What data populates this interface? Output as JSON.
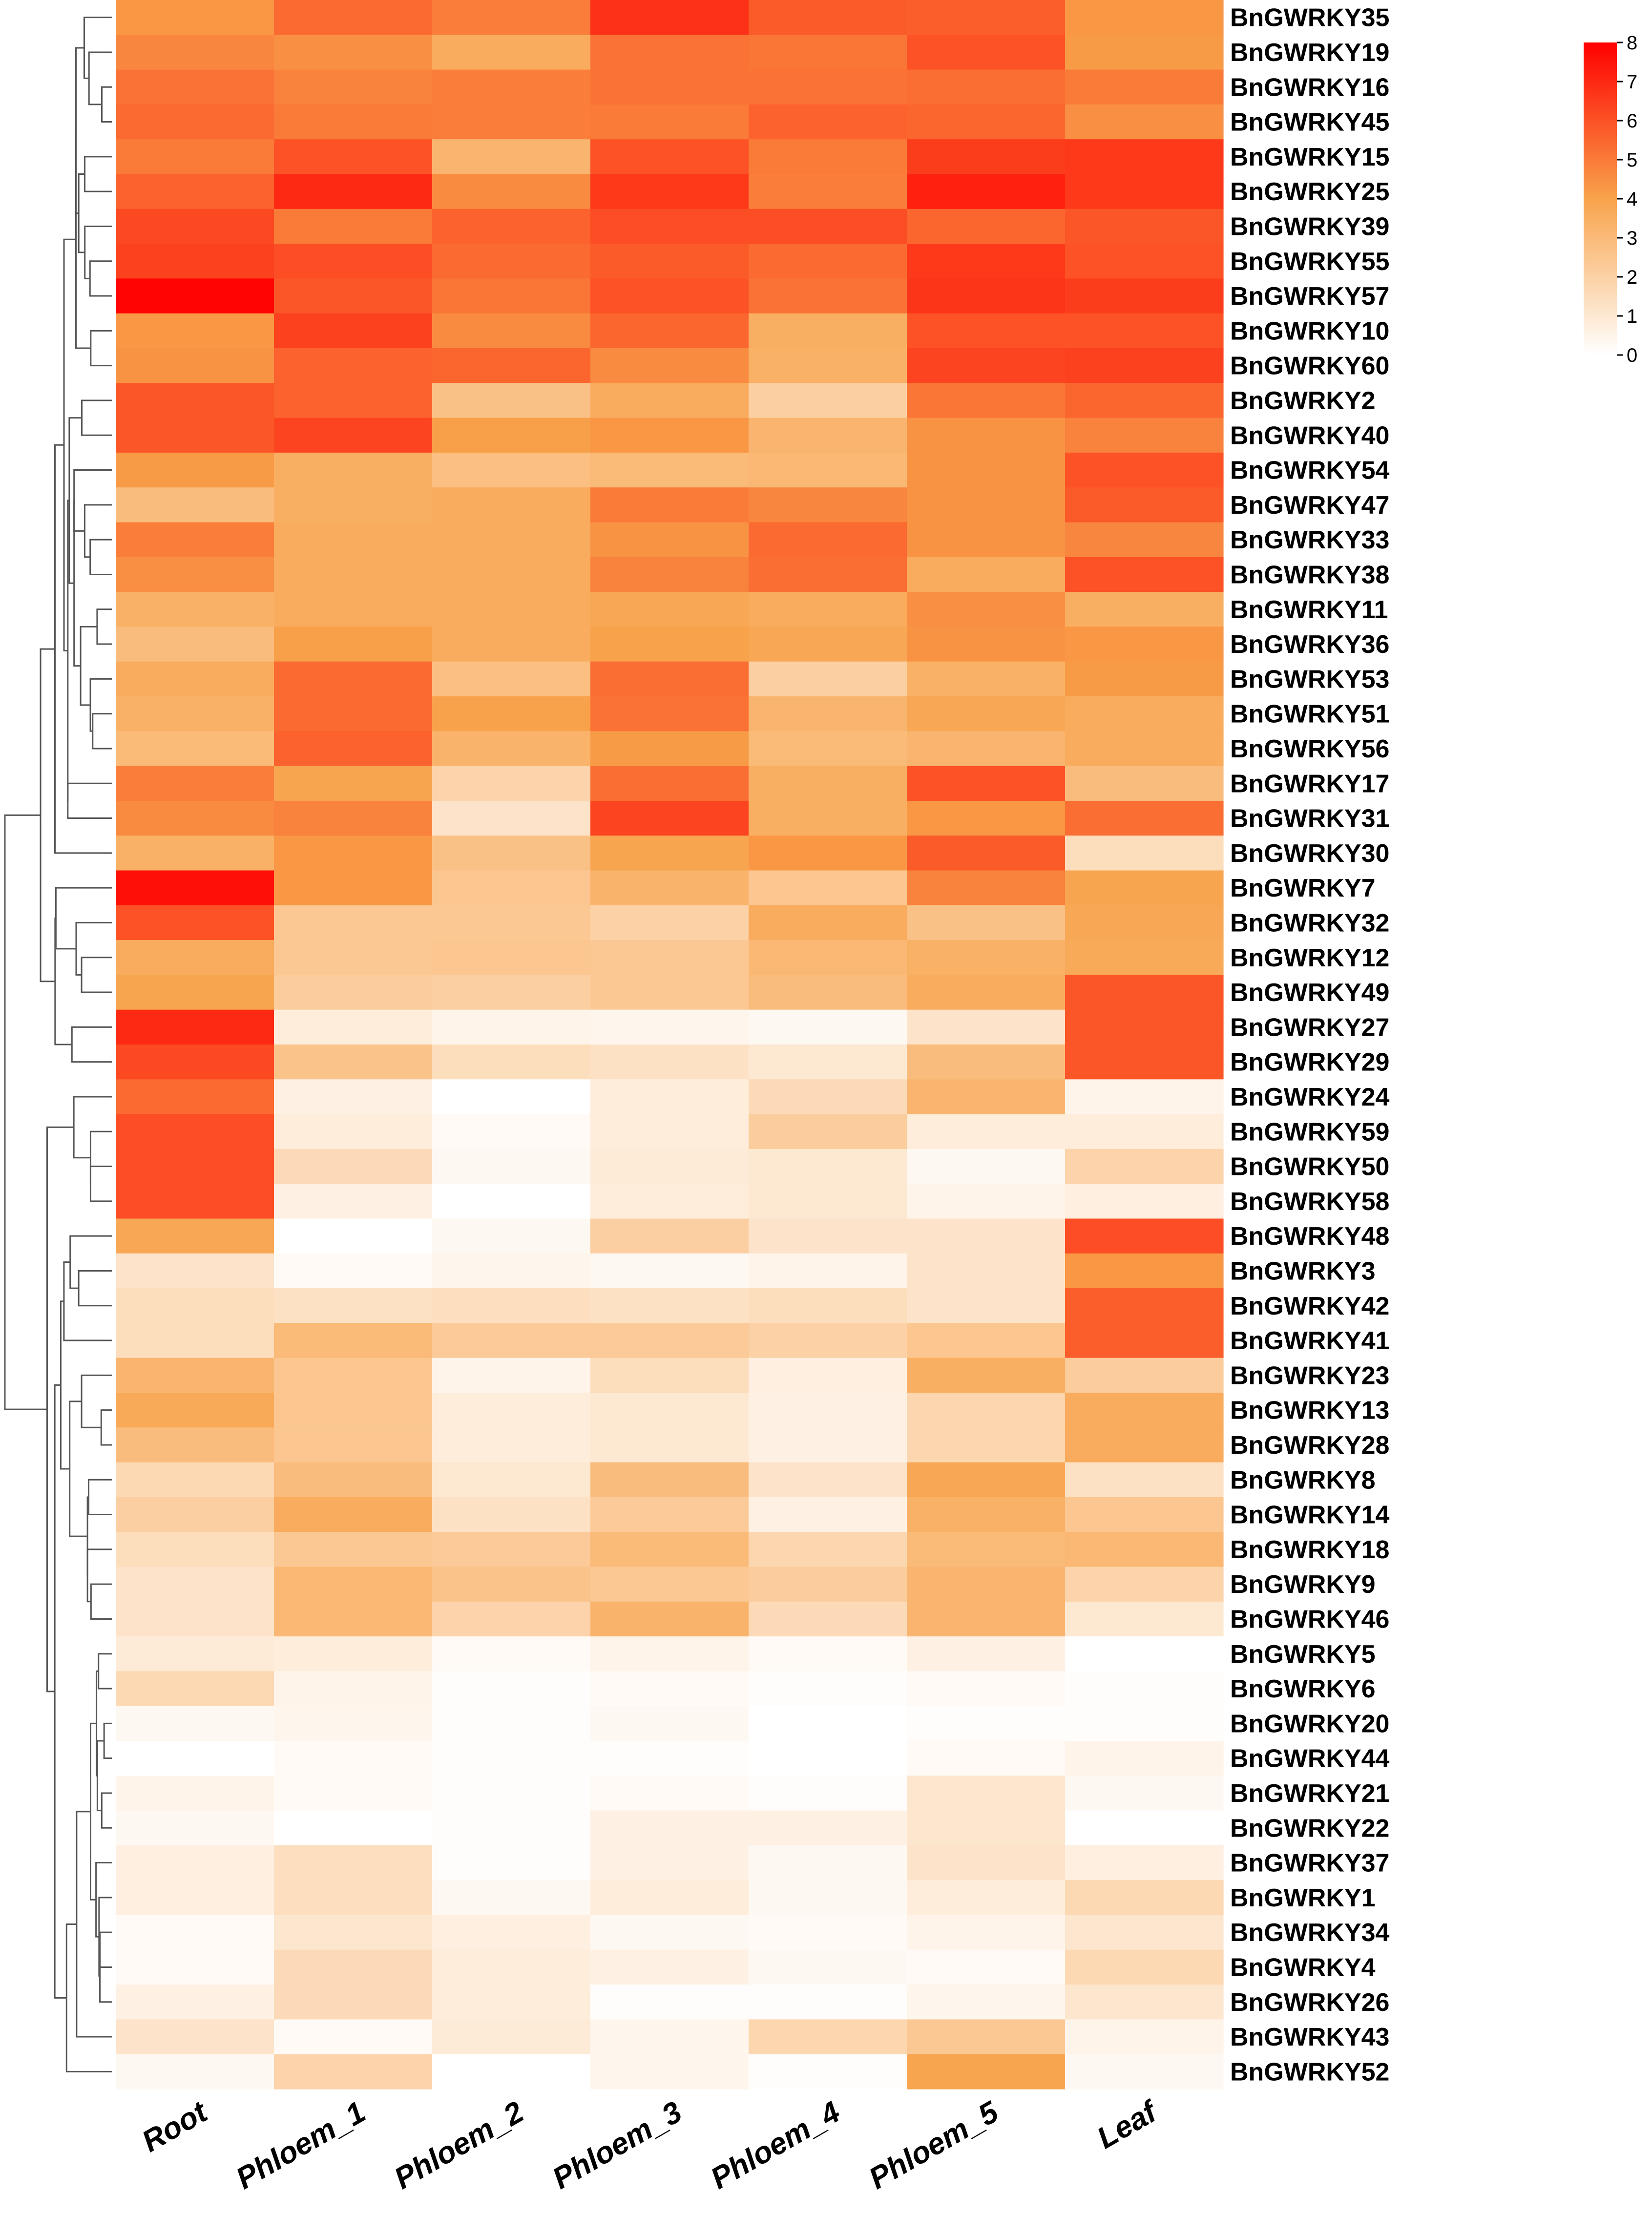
{
  "chart_data": {
    "type": "heatmap",
    "title": "",
    "xlabel": "",
    "ylabel": "",
    "columns": [
      "Root",
      "Phloem_1",
      "Phloem_2",
      "Phloem_3",
      "Phloem_4",
      "Phloem_5",
      "Leaf"
    ],
    "rows": [
      "BnGWRKY35",
      "BnGWRKY19",
      "BnGWRKY16",
      "BnGWRKY45",
      "BnGWRKY15",
      "BnGWRKY25",
      "BnGWRKY39",
      "BnGWRKY55",
      "BnGWRKY57",
      "BnGWRKY10",
      "BnGWRKY60",
      "BnGWRKY2",
      "BnGWRKY40",
      "BnGWRKY54",
      "BnGWRKY47",
      "BnGWRKY33",
      "BnGWRKY38",
      "BnGWRKY11",
      "BnGWRKY36",
      "BnGWRKY53",
      "BnGWRKY51",
      "BnGWRKY56",
      "BnGWRKY17",
      "BnGWRKY31",
      "BnGWRKY30",
      "BnGWRKY7",
      "BnGWRKY32",
      "BnGWRKY12",
      "BnGWRKY49",
      "BnGWRKY27",
      "BnGWRKY29",
      "BnGWRKY24",
      "BnGWRKY59",
      "BnGWRKY50",
      "BnGWRKY58",
      "BnGWRKY48",
      "BnGWRKY3",
      "BnGWRKY42",
      "BnGWRKY41",
      "BnGWRKY23",
      "BnGWRKY13",
      "BnGWRKY28",
      "BnGWRKY8",
      "BnGWRKY14",
      "BnGWRKY18",
      "BnGWRKY9",
      "BnGWRKY46",
      "BnGWRKY5",
      "BnGWRKY6",
      "BnGWRKY20",
      "BnGWRKY44",
      "BnGWRKY21",
      "BnGWRKY22",
      "BnGWRKY37",
      "BnGWRKY1",
      "BnGWRKY34",
      "BnGWRKY4",
      "BnGWRKY26",
      "BnGWRKY43",
      "BnGWRKY52"
    ],
    "values": [
      [
        4.3,
        5.4,
        4.9,
        6.8,
        5.8,
        5.7,
        4.3
      ],
      [
        4.7,
        4.5,
        3.6,
        5.2,
        5.1,
        6.0,
        4.2
      ],
      [
        5.2,
        4.8,
        4.9,
        5.2,
        5.2,
        5.3,
        5.0
      ],
      [
        5.4,
        5.0,
        4.9,
        5.0,
        5.6,
        5.5,
        4.5
      ],
      [
        5.0,
        6.0,
        3.2,
        6.0,
        5.0,
        6.5,
        6.6
      ],
      [
        5.6,
        7.0,
        4.6,
        6.6,
        4.9,
        7.2,
        6.6
      ],
      [
        6.2,
        5.0,
        5.6,
        6.1,
        6.1,
        5.5,
        5.9
      ],
      [
        6.4,
        6.1,
        5.4,
        5.8,
        5.4,
        6.6,
        6.0
      ],
      [
        7.9,
        5.9,
        5.1,
        6.0,
        5.2,
        6.7,
        6.5
      ],
      [
        4.3,
        6.4,
        4.6,
        5.5,
        3.5,
        6.0,
        6.0
      ],
      [
        4.4,
        5.6,
        5.5,
        4.6,
        3.4,
        6.3,
        6.4
      ],
      [
        5.9,
        5.6,
        2.7,
        3.6,
        2.1,
        5.1,
        5.5
      ],
      [
        5.9,
        6.3,
        4.1,
        4.3,
        3.2,
        4.4,
        4.8
      ],
      [
        4.2,
        3.5,
        2.8,
        3.0,
        3.1,
        4.4,
        6.0
      ],
      [
        2.9,
        3.5,
        3.6,
        5.0,
        4.7,
        4.4,
        5.8
      ],
      [
        4.9,
        3.6,
        3.6,
        4.4,
        5.4,
        4.4,
        4.7
      ],
      [
        4.5,
        3.6,
        3.6,
        4.8,
        5.3,
        3.6,
        6.0
      ],
      [
        3.4,
        3.6,
        3.6,
        3.8,
        3.6,
        4.5,
        3.5
      ],
      [
        2.9,
        4.1,
        3.6,
        4.0,
        3.8,
        4.4,
        4.3
      ],
      [
        3.6,
        5.4,
        2.8,
        5.3,
        2.1,
        3.4,
        4.2
      ],
      [
        3.4,
        5.4,
        4.0,
        5.2,
        3.2,
        3.8,
        3.6
      ],
      [
        3.0,
        5.6,
        3.3,
        4.2,
        3.0,
        3.2,
        3.6
      ],
      [
        4.9,
        3.9,
        1.9,
        5.3,
        3.5,
        6.0,
        2.9
      ],
      [
        4.6,
        4.8,
        1.2,
        6.3,
        3.5,
        4.3,
        5.3
      ],
      [
        3.4,
        4.3,
        2.7,
        3.9,
        4.3,
        5.8,
        1.5
      ],
      [
        7.6,
        4.3,
        2.5,
        3.3,
        2.5,
        4.8,
        3.9
      ],
      [
        6.0,
        2.4,
        2.4,
        2.0,
        3.6,
        2.7,
        3.8
      ],
      [
        3.6,
        2.4,
        2.5,
        2.4,
        3.1,
        3.4,
        3.7
      ],
      [
        3.9,
        2.2,
        2.1,
        2.4,
        2.9,
        3.6,
        5.9
      ],
      [
        7.0,
        0.8,
        0.5,
        0.4,
        0.3,
        1.2,
        5.9
      ],
      [
        6.2,
        2.6,
        1.5,
        1.3,
        1.0,
        2.9,
        5.9
      ],
      [
        5.4,
        0.6,
        0.0,
        0.8,
        1.6,
        3.2,
        0.5
      ],
      [
        6.1,
        0.8,
        0.2,
        0.8,
        2.2,
        0.8,
        0.8
      ],
      [
        6.1,
        1.6,
        0.3,
        0.9,
        1.0,
        0.3,
        1.9
      ],
      [
        6.1,
        0.6,
        0.0,
        0.8,
        1.0,
        0.5,
        0.7
      ],
      [
        3.8,
        0.0,
        0.3,
        2.1,
        1.2,
        1.2,
        6.1
      ],
      [
        1.2,
        0.2,
        0.4,
        0.3,
        0.5,
        1.2,
        4.3
      ],
      [
        1.5,
        1.3,
        1.4,
        1.3,
        1.5,
        1.2,
        5.7
      ],
      [
        1.5,
        3.0,
        2.3,
        2.3,
        2.0,
        2.5,
        5.7
      ],
      [
        3.2,
        2.5,
        0.5,
        1.5,
        0.7,
        3.5,
        2.2
      ],
      [
        3.7,
        2.5,
        0.8,
        1.0,
        0.6,
        1.8,
        3.6
      ],
      [
        2.9,
        2.5,
        0.8,
        1.0,
        0.6,
        1.8,
        3.6
      ],
      [
        1.7,
        2.9,
        1.0,
        2.9,
        1.2,
        3.8,
        1.3
      ],
      [
        2.1,
        3.6,
        1.3,
        2.3,
        0.6,
        3.4,
        2.5
      ],
      [
        1.5,
        2.4,
        2.3,
        3.0,
        1.8,
        3.0,
        3.1
      ],
      [
        1.2,
        3.1,
        2.6,
        2.4,
        2.2,
        3.2,
        1.9
      ],
      [
        1.2,
        3.1,
        1.9,
        3.3,
        1.6,
        3.2,
        1.0
      ],
      [
        0.9,
        0.8,
        0.2,
        0.5,
        0.2,
        0.6,
        0.0
      ],
      [
        1.7,
        0.5,
        0.1,
        0.2,
        0.1,
        0.2,
        0.1
      ],
      [
        0.3,
        0.4,
        0.1,
        0.3,
        0.0,
        0.1,
        0.1
      ],
      [
        0.0,
        0.2,
        0.1,
        0.1,
        0.0,
        0.2,
        0.5
      ],
      [
        0.5,
        0.2,
        0.1,
        0.2,
        0.1,
        1.1,
        0.3
      ],
      [
        0.3,
        0.0,
        0.1,
        0.6,
        0.6,
        1.1,
        0.0
      ],
      [
        0.7,
        1.4,
        0.1,
        0.6,
        0.3,
        1.2,
        0.7
      ],
      [
        0.7,
        1.4,
        0.3,
        0.8,
        0.3,
        0.8,
        1.7
      ],
      [
        0.2,
        1.1,
        0.7,
        0.3,
        0.2,
        0.5,
        1.1
      ],
      [
        0.2,
        1.6,
        0.8,
        0.6,
        0.3,
        0.2,
        1.7
      ],
      [
        0.6,
        1.6,
        0.8,
        0.1,
        0.1,
        0.4,
        1.1
      ],
      [
        1.2,
        0.2,
        0.9,
        0.4,
        1.8,
        2.4,
        0.5
      ],
      [
        0.3,
        1.9,
        0.0,
        0.4,
        0.1,
        3.9,
        0.3
      ]
    ],
    "colorbar": {
      "min": 0,
      "max": 8,
      "ticks": [
        "0",
        "1",
        "2",
        "3",
        "4",
        "5",
        "6",
        "7",
        "8"
      ],
      "colors": [
        "#ffffff",
        "#f8a34b",
        "#ff0000"
      ]
    },
    "dendrogram": "rows",
    "legend": "colorbar top-right",
    "grid": false
  }
}
